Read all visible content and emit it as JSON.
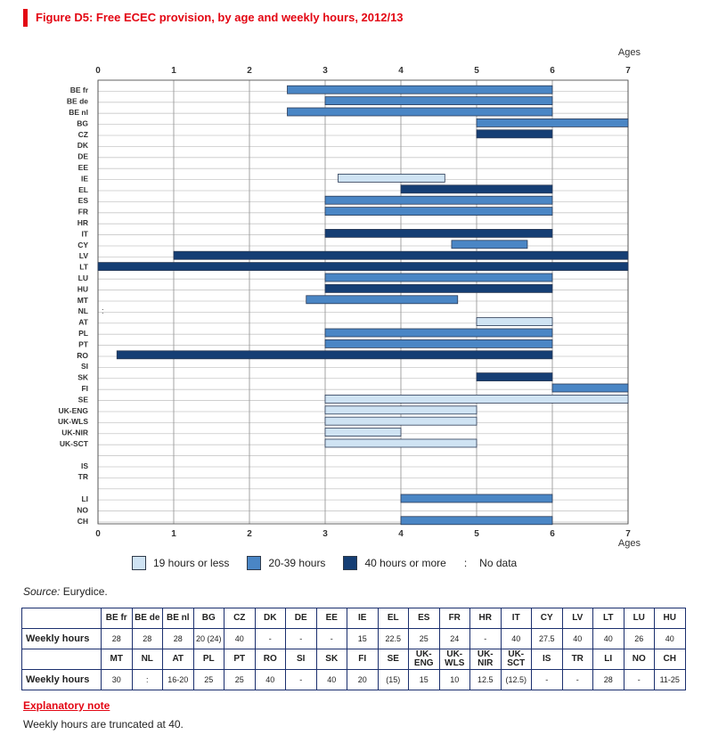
{
  "title": "Figure D5: Free ECEC provision, by age and weekly hours, 2012/13",
  "chart_data": {
    "type": "bar",
    "orientation": "horizontal-range",
    "axis_label": "Ages",
    "xlim": [
      0,
      7
    ],
    "x_ticks": [
      "0",
      "1",
      "2",
      "3",
      "4",
      "5",
      "6",
      "7"
    ],
    "grid": true,
    "colors": {
      "low": "#cfe3f3",
      "mid": "#4a86c5",
      "high": "#153e74"
    },
    "rows": [
      {
        "label": "BE fr",
        "start": 2.5,
        "end": 6,
        "cat": "mid"
      },
      {
        "label": "BE de",
        "start": 3,
        "end": 6,
        "cat": "mid"
      },
      {
        "label": "BE nl",
        "start": 2.5,
        "end": 6,
        "cat": "mid"
      },
      {
        "label": "BG",
        "start": 5,
        "end": 7,
        "cat": "mid"
      },
      {
        "label": "CZ",
        "start": 5,
        "end": 6,
        "cat": "high"
      },
      {
        "label": "DK"
      },
      {
        "label": "DE"
      },
      {
        "label": "EE"
      },
      {
        "label": "IE",
        "start": 3.17,
        "end": 4.58,
        "cat": "low"
      },
      {
        "label": "EL",
        "start": 4,
        "end": 6,
        "cat": "high"
      },
      {
        "label": "ES",
        "start": 3,
        "end": 6,
        "cat": "mid"
      },
      {
        "label": "FR",
        "start": 3,
        "end": 6,
        "cat": "mid"
      },
      {
        "label": "HR"
      },
      {
        "label": "IT",
        "start": 3,
        "end": 6,
        "cat": "high"
      },
      {
        "label": "CY",
        "start": 4.67,
        "end": 5.67,
        "cat": "mid"
      },
      {
        "label": "LV",
        "start": 1,
        "end": 7,
        "cat": "high"
      },
      {
        "label": "LT",
        "start": 0,
        "end": 7,
        "cat": "high"
      },
      {
        "label": "LU",
        "start": 3,
        "end": 6,
        "cat": "mid"
      },
      {
        "label": "HU",
        "start": 3,
        "end": 6,
        "cat": "high"
      },
      {
        "label": "MT",
        "start": 2.75,
        "end": 4.75,
        "cat": "mid"
      },
      {
        "label": "NL",
        "note": ":"
      },
      {
        "label": "AT",
        "start": 5,
        "end": 6,
        "cat": "low"
      },
      {
        "label": "PL",
        "start": 3,
        "end": 6,
        "cat": "mid"
      },
      {
        "label": "PT",
        "start": 3,
        "end": 6,
        "cat": "mid"
      },
      {
        "label": "RO",
        "start": 0.25,
        "end": 6,
        "cat": "high"
      },
      {
        "label": "SI"
      },
      {
        "label": "SK",
        "start": 5,
        "end": 6,
        "cat": "high"
      },
      {
        "label": "FI",
        "start": 6,
        "end": 7,
        "cat": "mid"
      },
      {
        "label": "SE",
        "start": 3,
        "end": 7,
        "cat": "low"
      },
      {
        "label": "UK-ENG",
        "start": 3,
        "end": 5,
        "cat": "low"
      },
      {
        "label": "UK-WLS",
        "start": 3,
        "end": 5,
        "cat": "low"
      },
      {
        "label": "UK-NIR",
        "start": 3,
        "end": 4,
        "cat": "low"
      },
      {
        "label": "UK-SCT",
        "start": 3,
        "end": 5,
        "cat": "low"
      },
      {
        "label": ""
      },
      {
        "label": "IS"
      },
      {
        "label": "TR"
      },
      {
        "label": ""
      },
      {
        "label": "LI",
        "start": 4,
        "end": 6,
        "cat": "mid"
      },
      {
        "label": "NO"
      },
      {
        "label": "CH",
        "start": 4,
        "end": 6,
        "cat": "mid"
      }
    ]
  },
  "legend": [
    {
      "key": "low",
      "label": "19 hours or less"
    },
    {
      "key": "mid",
      "label": "20-39 hours"
    },
    {
      "key": "high",
      "label": "40 hours or more"
    }
  ],
  "legend_nodata": {
    "symbol": ":",
    "label": "No data"
  },
  "source": {
    "label": "Source:",
    "text": "Eurydice."
  },
  "table": {
    "row_label": "Weekly hours",
    "rows": [
      {
        "headers": [
          "BE fr",
          "BE de",
          "BE nl",
          "BG",
          "CZ",
          "DK",
          "DE",
          "EE",
          "IE",
          "EL",
          "ES",
          "FR",
          "HR",
          "IT",
          "CY",
          "LV",
          "LT",
          "LU",
          "HU"
        ],
        "values": [
          "28",
          "28",
          "28",
          "20 (24)",
          "40",
          "-",
          "-",
          "-",
          "15",
          "22.5",
          "25",
          "24",
          "-",
          "40",
          "27.5",
          "40",
          "40",
          "26",
          "40"
        ]
      },
      {
        "headers": [
          "MT",
          "NL",
          "AT",
          "PL",
          "PT",
          "RO",
          "SI",
          "SK",
          "FI",
          "SE",
          "UK-ENG",
          "UK-WLS",
          "UK-NIR",
          "UK-SCT",
          "IS",
          "TR",
          "LI",
          "NO",
          "CH"
        ],
        "values": [
          "30",
          ":",
          "16-20",
          "25",
          "25",
          "40",
          "-",
          "40",
          "20",
          "(15)",
          "15",
          "10",
          "12.5",
          "(12.5)",
          "-",
          "-",
          "28",
          "-",
          "11-25"
        ]
      }
    ]
  },
  "note": {
    "title": "Explanatory note",
    "text": "Weekly hours are truncated at 40."
  }
}
